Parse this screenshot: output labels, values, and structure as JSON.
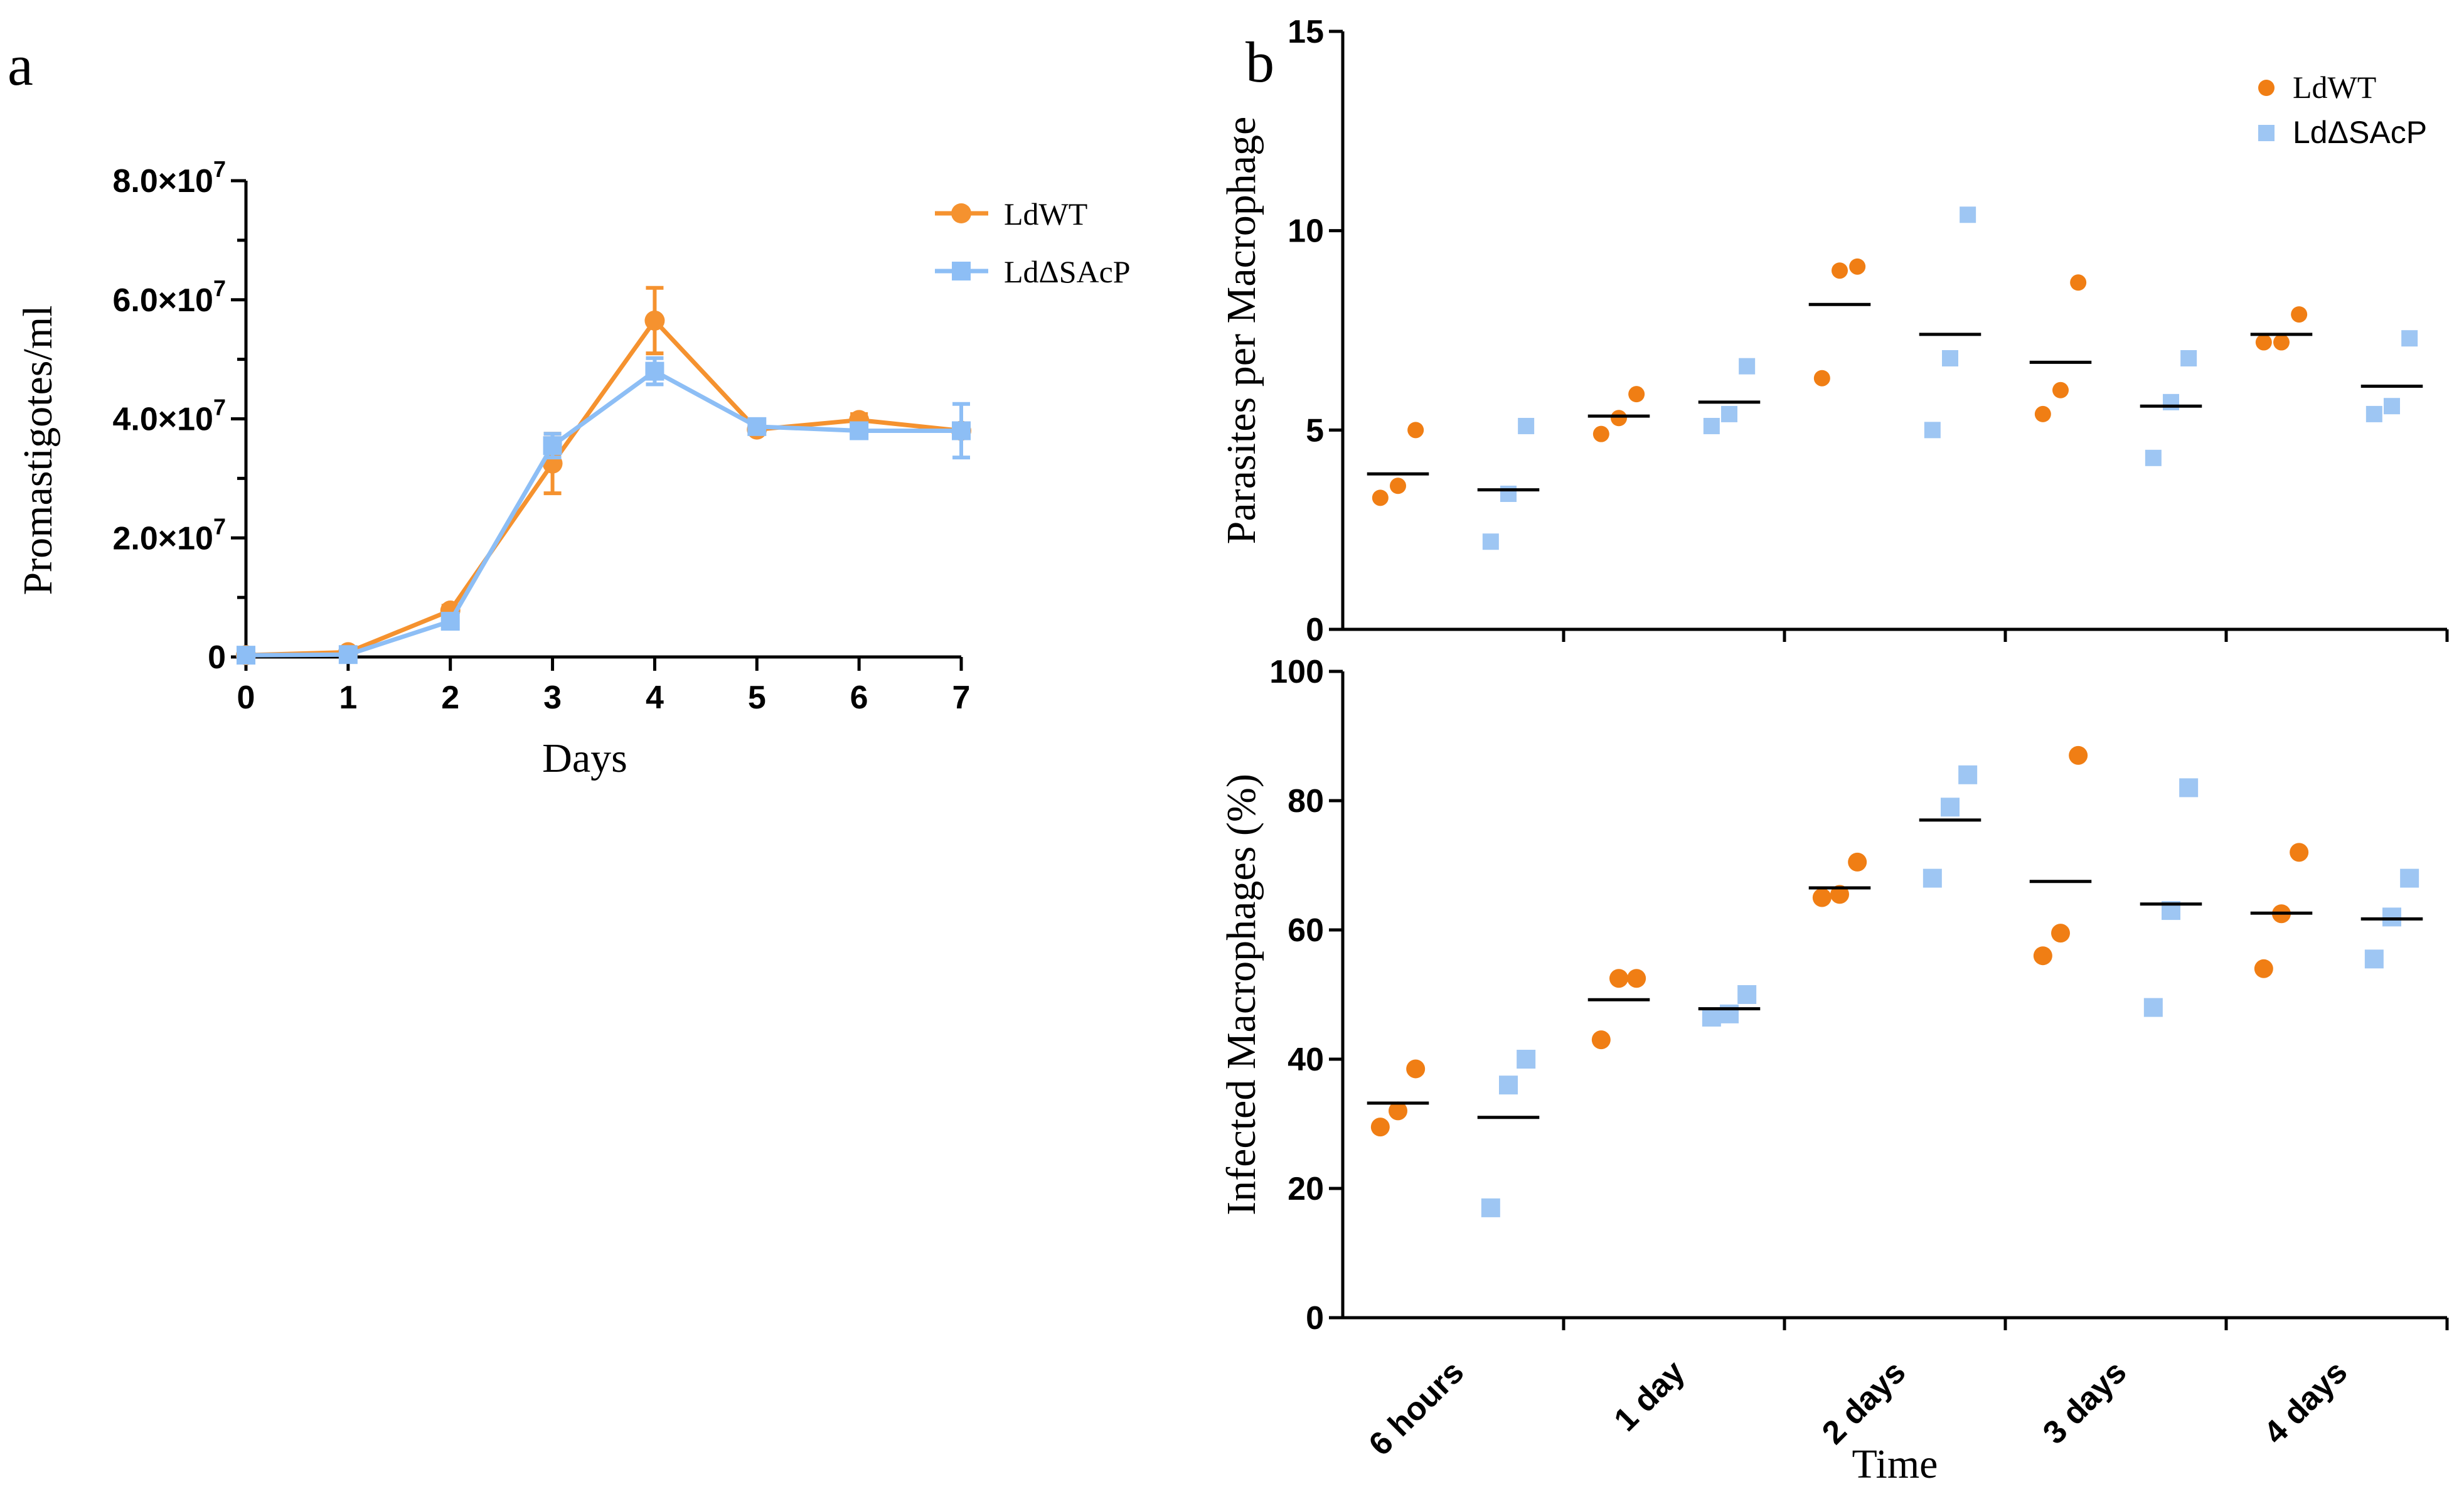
{
  "figure": {
    "panel_a_letter": "a",
    "panel_b_letter": "b"
  },
  "colors": {
    "ldwt": "#F5922F",
    "ldsacp": "#8DBEF5",
    "ldwt_dot": "#F07E14",
    "ldsacp_dot": "#9EC6F3",
    "mean_bar": "#000000"
  },
  "chart_data": [
    {
      "id": "panel-a",
      "type": "line",
      "title": "",
      "xlabel": "Days",
      "ylabel": "Promastigotes/ml",
      "x": [
        0,
        1,
        2,
        3,
        4,
        5,
        6,
        7
      ],
      "xticks": [
        "0",
        "1",
        "2",
        "3",
        "4",
        "5",
        "6",
        "7"
      ],
      "yticks": [
        {
          "value": 0,
          "label": "0",
          "sup": ""
        },
        {
          "value": 20000000,
          "label": "2.0×10",
          "sup": "7"
        },
        {
          "value": 40000000,
          "label": "4.0×10",
          "sup": "7"
        },
        {
          "value": 60000000,
          "label": "6.0×10",
          "sup": "7"
        },
        {
          "value": 80000000,
          "label": "8.0×10",
          "sup": "7"
        }
      ],
      "ylim": [
        0,
        80000000
      ],
      "xlim": [
        0,
        7
      ],
      "legend_position": "top-right",
      "series": [
        {
          "name": "LdWT",
          "marker": "circle",
          "values": [
            300000,
            800000,
            7800000,
            32500000,
            56500000,
            38200000,
            39800000,
            38000000
          ],
          "errors": [
            200000,
            300000,
            800000,
            5000000,
            5500000,
            700000,
            1000000,
            700000
          ]
        },
        {
          "name": "LdΔSAcP",
          "marker": "square",
          "values": [
            300000,
            400000,
            6000000,
            35500000,
            48000000,
            38700000,
            38000000,
            38000000
          ],
          "errors": [
            200000,
            200000,
            600000,
            2000000,
            2200000,
            600000,
            700000,
            4500000
          ]
        }
      ]
    },
    {
      "id": "panel-b-top",
      "type": "scatter",
      "xlabel": "",
      "ylabel": "Parasites per Macrophage",
      "categories": [
        "6 hours",
        "1 day",
        "2 days",
        "3 days",
        "4 days"
      ],
      "yticks": [
        "0",
        "5",
        "10",
        "15"
      ],
      "ylim": [
        0,
        15
      ],
      "legend_position": "top-right",
      "series": [
        {
          "name": "LdWT",
          "marker": "circle",
          "points": [
            [
              3.3,
              3.6,
              5.0
            ],
            [
              4.9,
              5.3,
              5.9
            ],
            [
              6.3,
              9.0,
              9.1
            ],
            [
              5.4,
              6.0,
              8.7
            ],
            [
              7.2,
              7.2,
              7.9
            ]
          ],
          "means": [
            3.9,
            5.35,
            8.15,
            6.7,
            7.4
          ]
        },
        {
          "name": "LdΔSAcP",
          "marker": "square",
          "points": [
            [
              2.2,
              3.4,
              5.1
            ],
            [
              5.1,
              5.4,
              6.6
            ],
            [
              5.0,
              6.8,
              10.4
            ],
            [
              4.3,
              5.7,
              6.8
            ],
            [
              5.4,
              5.6,
              7.3
            ]
          ],
          "means": [
            3.5,
            5.7,
            7.4,
            5.6,
            6.1
          ]
        }
      ]
    },
    {
      "id": "panel-b-bottom",
      "type": "scatter",
      "xlabel": "Time",
      "ylabel": "Infected Macrophages (%)",
      "categories": [
        "6 hours",
        "1 day",
        "2 days",
        "3 days",
        "4 days"
      ],
      "yticks": [
        "0",
        "20",
        "40",
        "60",
        "80",
        "100"
      ],
      "ylim": [
        0,
        100
      ],
      "series": [
        {
          "name": "LdWT",
          "marker": "circle",
          "points": [
            [
              29.5,
              32.0,
              38.5
            ],
            [
              43.0,
              52.5,
              52.5
            ],
            [
              65.0,
              65.5,
              70.5
            ],
            [
              56.0,
              59.5,
              87.0
            ],
            [
              54.0,
              62.5,
              72.0
            ]
          ],
          "means": [
            33.2,
            49.2,
            66.5,
            67.5,
            62.6
          ]
        },
        {
          "name": "LdΔSAcP",
          "marker": "square",
          "points": [
            [
              17.0,
              36.0,
              40.0
            ],
            [
              46.5,
              47.0,
              50.0
            ],
            [
              68.0,
              79.0,
              84.0
            ],
            [
              48.0,
              63.0,
              82.0
            ],
            [
              55.5,
              62.0,
              68.0
            ]
          ],
          "means": [
            31.0,
            47.8,
            77.0,
            64.0,
            61.7
          ]
        }
      ]
    }
  ]
}
